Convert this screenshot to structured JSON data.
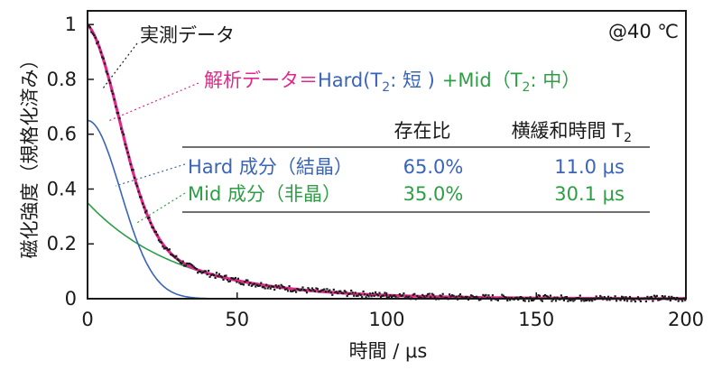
{
  "chart_data": {
    "type": "line",
    "xlabel": "時間 / μs",
    "ylabel": "磁化強度（規格化済み）",
    "xlim": [
      0,
      200
    ],
    "ylim": [
      0,
      1.05
    ],
    "xticks": [
      "0",
      "50",
      "100",
      "150",
      "200"
    ],
    "yticks": [
      "0",
      "0.2",
      "0.4",
      "0.6",
      "0.8",
      "1"
    ],
    "xtick_values": [
      0,
      50,
      100,
      150,
      200
    ],
    "ytick_values": [
      0,
      0.2,
      0.4,
      0.6,
      0.8,
      1
    ],
    "grid": false,
    "temperature": "@40 ℃",
    "series": [
      {
        "name": "実測データ",
        "color": "#1a1a1a",
        "style": "dotted-points"
      },
      {
        "name": "解析データ",
        "color": "#e0288a",
        "style": "line"
      },
      {
        "name": "Hard成分（結晶）",
        "color": "#3a64b8",
        "style": "line",
        "model": "gaussian",
        "amplitude": 0.65,
        "T2_us": 11.0
      },
      {
        "name": "Mid成分（非晶）",
        "color": "#2e9e46",
        "style": "line",
        "model": "exponential",
        "amplitude": 0.35,
        "T2_us": 30.1
      }
    ],
    "annotations": {
      "measured": "実測データ",
      "fit_pink": "解析データ＝",
      "fit_hard": "Hard(T",
      "fit_hard_sub": "2",
      "fit_hard_tail": ": 短 )",
      "fit_mid": "+Mid（T",
      "fit_mid_sub": "2",
      "fit_mid_tail": ": 中）"
    },
    "table": {
      "headers": [
        "存在比",
        "横緩和時間 T"
      ],
      "header_sub": "2",
      "rows": [
        {
          "label": "Hard 成分（結晶）",
          "ratio": "65.0%",
          "t2": "11.0 μs",
          "color": "#3a64b8"
        },
        {
          "label": "Mid 成分（非晶）",
          "ratio": "35.0%",
          "t2": "30.1 μs",
          "color": "#2e9e46"
        }
      ]
    }
  }
}
